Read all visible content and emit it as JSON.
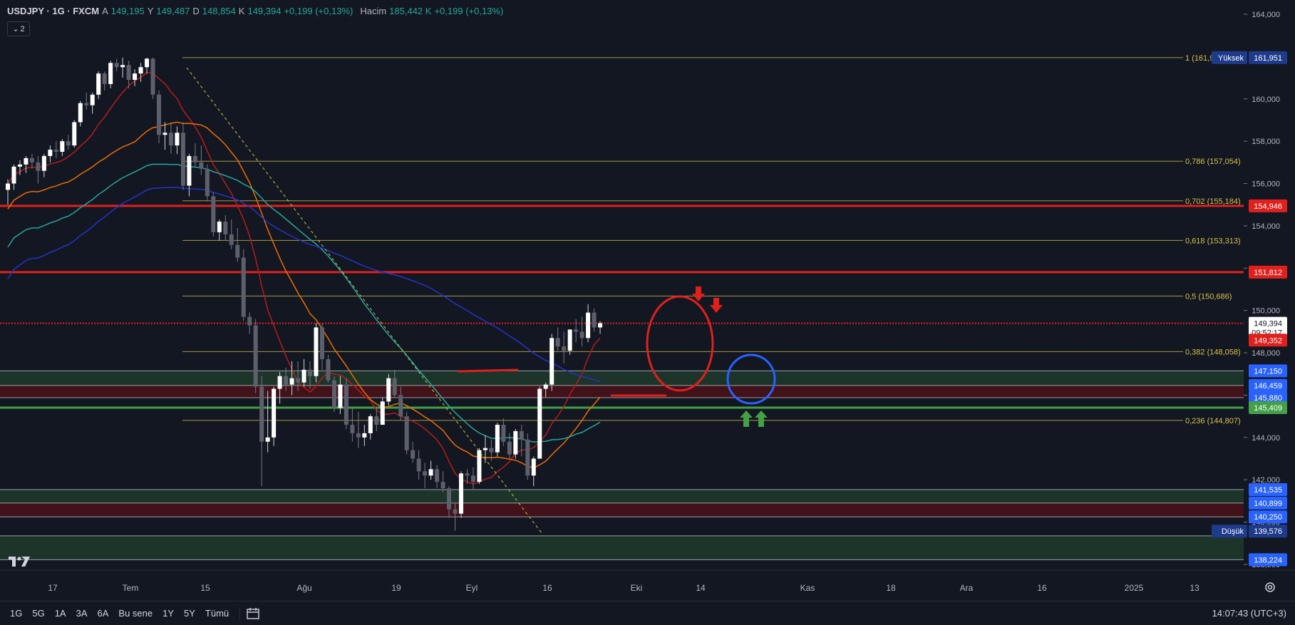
{
  "header": {
    "symbol": "USDJPY · 1G · FXCM",
    "open_label": "A",
    "open": "149,195",
    "high_label": "Y",
    "high": "149,487",
    "low_label": "D",
    "low": "148,854",
    "close_label": "K",
    "close": "149,394",
    "change": "+0,199 (+0,13%)",
    "volume_label": "Hacim",
    "volume": "185,442 K",
    "volume_change": "+0,199 (+0,13%)"
  },
  "collapse_count": "2",
  "price_axis": {
    "ticks": [
      "164,000",
      "162,000",
      "160,000",
      "158,000",
      "156,000",
      "154,000",
      "152,000",
      "150,000",
      "148,000",
      "146,000",
      "144,000",
      "142,000",
      "140,000",
      "138,000"
    ],
    "tick_values": [
      164,
      162,
      160,
      158,
      156,
      154,
      152,
      150,
      148,
      146,
      144,
      142,
      140,
      138
    ]
  },
  "time_axis": {
    "labels": [
      "17",
      "Tem",
      "15",
      "Ağu",
      "19",
      "Eyl",
      "16",
      "Eki",
      "14",
      "Kas",
      "18",
      "Ara",
      "16",
      "2025",
      "13"
    ]
  },
  "fib_levels": [
    {
      "label": "1 (161,951)",
      "price": 161.951
    },
    {
      "label": "0,786 (157,054)",
      "price": 157.054
    },
    {
      "label": "0,702 (155,184)",
      "price": 155.184
    },
    {
      "label": "0,618 (153,313)",
      "price": 153.313
    },
    {
      "label": "0,5 (150,686)",
      "price": 150.686
    },
    {
      "label": "0,382 (148,058)",
      "price": 148.058
    },
    {
      "label": "0,236 (144,807)",
      "price": 144.807
    }
  ],
  "price_tags": [
    {
      "text": "161,951",
      "price": 161.951,
      "color": "#1e3a8a",
      "prefix": "Yüksek"
    },
    {
      "text": "154,946",
      "price": 154.946,
      "color": "#e0201c"
    },
    {
      "text": "151,812",
      "price": 151.812,
      "color": "#e0201c"
    },
    {
      "text": "149,394",
      "price": 149.394,
      "color": "#ffffff",
      "sub": "09:52:17"
    },
    {
      "text": "149,352",
      "price": 148.6,
      "color": "#e0201c"
    },
    {
      "text": "147,150",
      "price": 147.15,
      "color": "#2962ff"
    },
    {
      "text": "146,459",
      "price": 146.459,
      "color": "#2962ff"
    },
    {
      "text": "145,880",
      "price": 145.88,
      "color": "#2962ff"
    },
    {
      "text": "145,409",
      "price": 145.409,
      "color": "#43a047"
    },
    {
      "text": "141,535",
      "price": 141.535,
      "color": "#2962ff"
    },
    {
      "text": "140,899",
      "price": 140.899,
      "color": "#2962ff"
    },
    {
      "text": "140,250",
      "price": 140.25,
      "color": "#2962ff"
    },
    {
      "text": "139,576",
      "price": 139.576,
      "color": "#1e3a8a",
      "prefix": "Düşük"
    },
    {
      "text": "138,224",
      "price": 138.224,
      "color": "#2962ff"
    }
  ],
  "bottom_bar": {
    "ranges": [
      "1G",
      "5G",
      "1A",
      "3A",
      "6A",
      "Bu sene",
      "1Y",
      "5Y",
      "Tümü"
    ],
    "clock": "14:07:43 (UTC+3)"
  },
  "chart_data": {
    "type": "candlestick",
    "symbol": "USDJPY",
    "interval": "1G",
    "ylim": [
      137.7,
      164.4
    ],
    "candles": [
      [
        155.7,
        156.2,
        155.0,
        156.0
      ],
      [
        156.0,
        156.9,
        155.7,
        156.8
      ],
      [
        156.8,
        157.1,
        156.4,
        156.9
      ],
      [
        156.9,
        157.3,
        156.5,
        157.2
      ],
      [
        157.2,
        157.4,
        156.7,
        157.0
      ],
      [
        157.0,
        157.3,
        156.0,
        156.6
      ],
      [
        156.6,
        157.4,
        156.3,
        157.3
      ],
      [
        157.3,
        157.8,
        157.0,
        157.6
      ],
      [
        157.6,
        158.0,
        157.2,
        157.5
      ],
      [
        157.5,
        158.1,
        157.3,
        158.0
      ],
      [
        158.0,
        158.3,
        157.6,
        157.8
      ],
      [
        157.8,
        159.0,
        157.7,
        158.9
      ],
      [
        158.9,
        159.9,
        158.7,
        159.8
      ],
      [
        159.8,
        160.3,
        159.5,
        159.7
      ],
      [
        159.7,
        160.3,
        159.3,
        160.2
      ],
      [
        160.2,
        161.3,
        160.0,
        161.2
      ],
      [
        161.2,
        161.3,
        160.4,
        160.7
      ],
      [
        160.7,
        161.8,
        160.5,
        161.7
      ],
      [
        161.7,
        161.9,
        161.3,
        161.5
      ],
      [
        161.5,
        161.95,
        161.0,
        161.6
      ],
      [
        161.6,
        161.8,
        160.5,
        160.9
      ],
      [
        160.9,
        161.4,
        160.6,
        161.2
      ],
      [
        161.2,
        161.7,
        160.8,
        161.5
      ],
      [
        161.5,
        161.95,
        161.2,
        161.9
      ],
      [
        161.9,
        161.95,
        160.0,
        160.2
      ],
      [
        160.2,
        160.4,
        157.9,
        158.3
      ],
      [
        158.3,
        158.9,
        157.6,
        158.4
      ],
      [
        158.4,
        158.9,
        157.4,
        157.8
      ],
      [
        157.8,
        158.7,
        157.4,
        158.4
      ],
      [
        158.4,
        158.9,
        155.7,
        155.9
      ],
      [
        155.9,
        157.4,
        155.4,
        157.3
      ],
      [
        157.3,
        157.9,
        156.8,
        157.0
      ],
      [
        157.0,
        157.8,
        156.4,
        156.7
      ],
      [
        156.7,
        156.9,
        155.2,
        155.4
      ],
      [
        155.4,
        155.6,
        153.5,
        153.7
      ],
      [
        153.7,
        154.3,
        153.3,
        154.2
      ],
      [
        154.2,
        154.5,
        153.3,
        153.6
      ],
      [
        153.6,
        154.3,
        152.9,
        153.1
      ],
      [
        153.1,
        153.9,
        152.3,
        152.5
      ],
      [
        152.5,
        152.9,
        149.5,
        149.7
      ],
      [
        149.7,
        149.9,
        148.9,
        149.3
      ],
      [
        149.3,
        149.6,
        146.1,
        146.4
      ],
      [
        146.4,
        146.9,
        141.7,
        143.8
      ],
      [
        143.8,
        146.2,
        143.3,
        144.0
      ],
      [
        144.0,
        146.4,
        143.6,
        146.3
      ],
      [
        146.3,
        147.1,
        145.6,
        146.9
      ],
      [
        146.9,
        147.3,
        146.2,
        146.5
      ],
      [
        146.5,
        147.6,
        146.0,
        146.8
      ],
      [
        146.8,
        147.6,
        146.2,
        146.6
      ],
      [
        146.6,
        147.7,
        146.4,
        147.2
      ],
      [
        147.2,
        147.6,
        146.3,
        146.9
      ],
      [
        146.9,
        149.4,
        146.6,
        149.2
      ],
      [
        149.2,
        149.4,
        147.2,
        147.7
      ],
      [
        147.7,
        147.9,
        146.6,
        146.7
      ],
      [
        146.7,
        146.9,
        145.2,
        145.4
      ],
      [
        145.4,
        146.9,
        145.1,
        146.5
      ],
      [
        146.5,
        146.8,
        144.4,
        144.6
      ],
      [
        144.6,
        145.4,
        143.8,
        144.2
      ],
      [
        144.2,
        145.2,
        143.5,
        144.0
      ],
      [
        144.0,
        144.6,
        143.6,
        144.2
      ],
      [
        144.2,
        145.1,
        143.9,
        145.0
      ],
      [
        145.0,
        145.4,
        144.3,
        144.6
      ],
      [
        144.6,
        145.9,
        144.6,
        145.7
      ],
      [
        145.7,
        147.0,
        145.5,
        146.8
      ],
      [
        146.8,
        147.2,
        145.9,
        146.0
      ],
      [
        146.0,
        146.4,
        144.8,
        145.0
      ],
      [
        145.0,
        145.2,
        143.2,
        143.4
      ],
      [
        143.4,
        143.8,
        142.8,
        143.0
      ],
      [
        143.0,
        143.4,
        142.0,
        142.4
      ],
      [
        142.4,
        142.8,
        141.6,
        142.2
      ],
      [
        142.2,
        142.9,
        142.0,
        142.5
      ],
      [
        142.5,
        142.7,
        141.6,
        141.9
      ],
      [
        141.9,
        142.4,
        141.4,
        141.6
      ],
      [
        141.6,
        141.7,
        140.2,
        140.6
      ],
      [
        140.6,
        140.9,
        139.6,
        140.4
      ],
      [
        140.4,
        142.4,
        140.2,
        142.3
      ],
      [
        142.3,
        142.5,
        141.8,
        142.2
      ],
      [
        142.2,
        142.6,
        141.5,
        141.9
      ],
      [
        141.9,
        143.5,
        141.8,
        143.4
      ],
      [
        143.4,
        144.1,
        142.8,
        143.5
      ],
      [
        143.5,
        143.9,
        142.9,
        143.3
      ],
      [
        143.3,
        144.7,
        143.1,
        144.6
      ],
      [
        144.6,
        144.9,
        143.6,
        143.8
      ],
      [
        143.8,
        144.2,
        143.0,
        143.2
      ],
      [
        143.2,
        144.4,
        143.0,
        144.3
      ],
      [
        144.3,
        144.6,
        143.1,
        143.9
      ],
      [
        143.9,
        144.2,
        142.0,
        142.2
      ],
      [
        142.2,
        143.1,
        141.7,
        143.0
      ],
      [
        143.0,
        146.4,
        143.0,
        146.3
      ],
      [
        146.3,
        146.6,
        145.9,
        146.5
      ],
      [
        146.5,
        148.9,
        146.2,
        148.7
      ],
      [
        148.7,
        149.2,
        148.1,
        148.3
      ],
      [
        148.3,
        149.0,
        147.5,
        148.1
      ],
      [
        148.1,
        149.1,
        147.9,
        149.1
      ],
      [
        149.1,
        149.6,
        148.5,
        149.0
      ],
      [
        149.0,
        149.7,
        148.3,
        148.7
      ],
      [
        148.7,
        150.3,
        148.5,
        149.9
      ],
      [
        149.9,
        150.1,
        149.0,
        149.2
      ],
      [
        149.2,
        149.5,
        148.9,
        149.4
      ]
    ],
    "moving_averages": [
      {
        "name": "MA red",
        "color": "#b71c1c"
      },
      {
        "name": "MA orange",
        "color": "#ef6c00"
      },
      {
        "name": "MA teal",
        "color": "#26a69a"
      },
      {
        "name": "MA blue",
        "color": "#2633c8"
      }
    ],
    "horizontal_lines": [
      {
        "price": 154.946,
        "color": "#e0201c"
      },
      {
        "price": 151.812,
        "color": "#e0201c"
      },
      {
        "price": 149.394,
        "color": "#e0201c",
        "dotted": true
      },
      {
        "price": 145.409,
        "color": "#43a047"
      }
    ],
    "zones": [
      {
        "top": 147.15,
        "bottom": 146.459,
        "color": "#1e3a2c"
      },
      {
        "top": 146.459,
        "bottom": 145.88,
        "color": "#4a1219"
      },
      {
        "top": 141.535,
        "bottom": 140.899,
        "color": "#1e3a2c"
      },
      {
        "top": 140.899,
        "bottom": 140.25,
        "color": "#4a1219"
      },
      {
        "top": 139.35,
        "bottom": 138.224,
        "color": "#1e3a2c"
      }
    ]
  }
}
